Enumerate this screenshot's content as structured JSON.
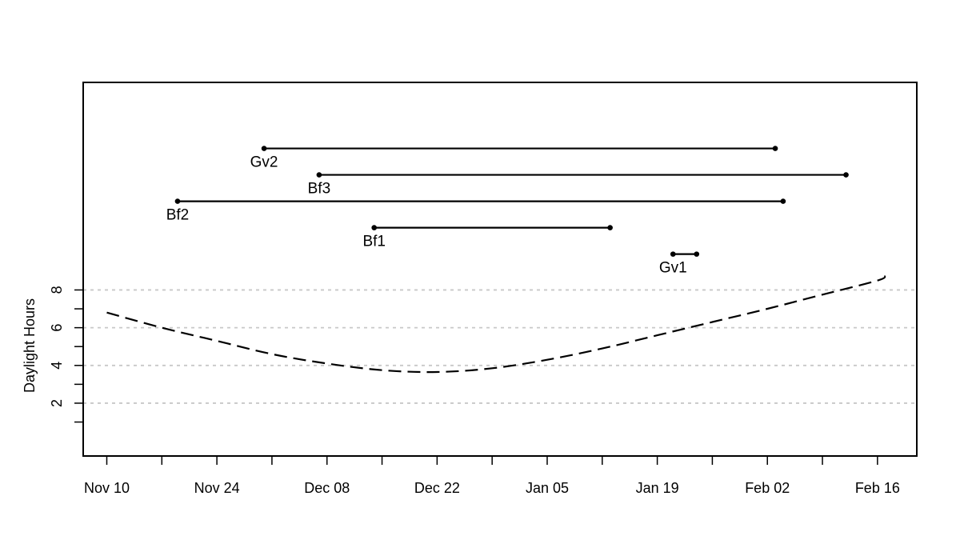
{
  "chart_data": {
    "type": "line",
    "xlabel": "",
    "ylabel": "Daylight Hours",
    "x_axis": {
      "range": [
        "Nov 07",
        "Feb 21"
      ],
      "ticks": [
        {
          "date": "Nov 10",
          "label": "Nov 10"
        },
        {
          "date": "Nov 17",
          "label": ""
        },
        {
          "date": "Nov 24",
          "label": "Nov 24"
        },
        {
          "date": "Dec 01",
          "label": ""
        },
        {
          "date": "Dec 08",
          "label": "Dec 08"
        },
        {
          "date": "Dec 15",
          "label": ""
        },
        {
          "date": "Dec 22",
          "label": "Dec 22"
        },
        {
          "date": "Dec 29",
          "label": ""
        },
        {
          "date": "Jan 05",
          "label": "Jan 05"
        },
        {
          "date": "Jan 12",
          "label": ""
        },
        {
          "date": "Jan 19",
          "label": "Jan 19"
        },
        {
          "date": "Jan 26",
          "label": ""
        },
        {
          "date": "Feb 02",
          "label": "Feb 02"
        },
        {
          "date": "Feb 09",
          "label": ""
        },
        {
          "date": "Feb 16",
          "label": "Feb 16"
        }
      ]
    },
    "y_axis": {
      "range": [
        -0.8,
        19
      ],
      "tick_values": [
        1,
        2,
        3,
        4,
        5,
        6,
        7,
        8
      ],
      "labeled_ticks": [
        {
          "value": 2,
          "label": "2"
        },
        {
          "value": 4,
          "label": "4"
        },
        {
          "value": 6,
          "label": "6"
        },
        {
          "value": 8,
          "label": "8"
        }
      ],
      "gridlines": [
        2,
        4,
        6,
        8
      ]
    },
    "daylight_curve": {
      "style": "dashed",
      "points": [
        {
          "date": "Nov 10",
          "hours": 6.8
        },
        {
          "date": "Nov 17",
          "hours": 6.0
        },
        {
          "date": "Nov 24",
          "hours": 5.3
        },
        {
          "date": "Dec 01",
          "hours": 4.6
        },
        {
          "date": "Dec 08",
          "hours": 4.1
        },
        {
          "date": "Dec 15",
          "hours": 3.75
        },
        {
          "date": "Dec 22",
          "hours": 3.65
        },
        {
          "date": "Dec 29",
          "hours": 3.85
        },
        {
          "date": "Jan 05",
          "hours": 4.3
        },
        {
          "date": "Jan 12",
          "hours": 4.9
        },
        {
          "date": "Jan 19",
          "hours": 5.6
        },
        {
          "date": "Jan 26",
          "hours": 6.3
        },
        {
          "date": "Feb 02",
          "hours": 7.0
        },
        {
          "date": "Feb 09",
          "hours": 7.75
        },
        {
          "date": "Feb 16",
          "hours": 8.5
        },
        {
          "date": "Feb 17",
          "hours": 8.75
        }
      ]
    },
    "segments": [
      {
        "label": "Gv2",
        "start": "Nov 30",
        "end": "Feb 03",
        "level": 15.5
      },
      {
        "label": "Bf3",
        "start": "Dec 07",
        "end": "Feb 12",
        "level": 14.1
      },
      {
        "label": "Bf2",
        "start": "Nov 19",
        "end": "Feb 04",
        "level": 12.7
      },
      {
        "label": "Bf1",
        "start": "Dec 14",
        "end": "Jan 13",
        "level": 11.3
      },
      {
        "label": "Gv1",
        "start": "Jan 21",
        "end": "Jan 24",
        "level": 9.9
      }
    ]
  }
}
